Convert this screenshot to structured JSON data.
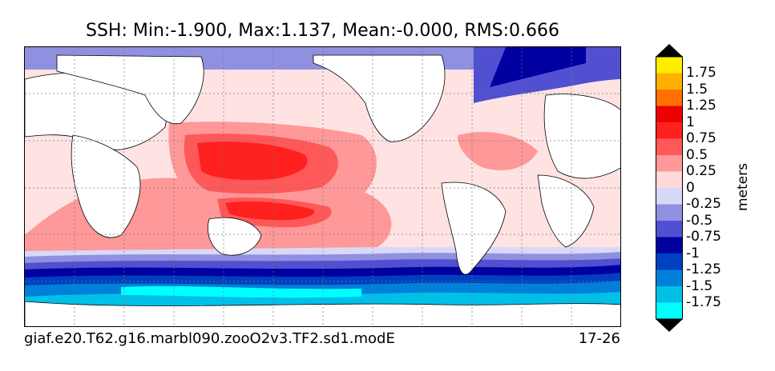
{
  "chart_data": {
    "type": "heatmap",
    "title": "SSH: Min:-1.900, Max:1.137, Mean:-0.000, RMS:0.666",
    "variable": "SSH",
    "stats": {
      "min": -1.9,
      "max": 1.137,
      "mean": -0.0,
      "rms": 0.666
    },
    "units": "meters",
    "colorbar": {
      "levels": [
        -2.0,
        -1.75,
        -1.5,
        -1.25,
        -1.0,
        -0.75,
        -0.5,
        -0.25,
        0,
        0.25,
        0.5,
        0.75,
        1.0,
        1.25,
        1.5,
        1.75,
        2.0
      ],
      "tick_labels": [
        "-1.75",
        "-1.5",
        "-1.25",
        "-1",
        "-0.75",
        "-0.5",
        "-0.25",
        "0",
        "0.25",
        "0.5",
        "0.75",
        "1",
        "1.25",
        "1.5",
        "1.75"
      ],
      "colors": [
        "#00ffff",
        "#00c0e8",
        "#0080d8",
        "#0040c0",
        "#0000a0",
        "#5050d0",
        "#9090e0",
        "#d8d8f8",
        "#ffd8d8",
        "#ff9898",
        "#ff5858",
        "#ff2020",
        "#ee0000",
        "#ff7000",
        "#ffb000",
        "#ffee00"
      ],
      "extend": "both"
    },
    "grid": true,
    "footer_left": "giaf.e20.T62.g16.marbl090.zooO2v3.TF2.sd1.modE",
    "footer_right": "17-26"
  }
}
